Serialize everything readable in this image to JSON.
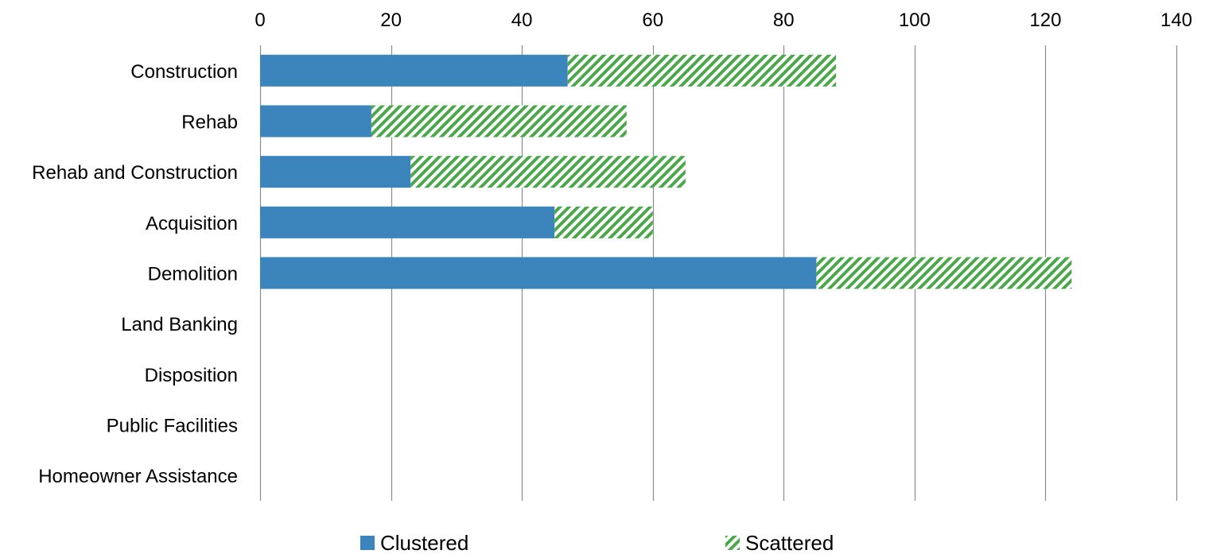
{
  "chart_data": {
    "type": "bar",
    "orientation": "horizontal",
    "stacked": true,
    "categories": [
      "Construction",
      "Rehab",
      "Rehab and Construction",
      "Acquisition",
      "Demolition",
      "Land Banking",
      "Disposition",
      "Public Facilities",
      "Homeowner Assistance"
    ],
    "series": [
      {
        "name": "Clustered",
        "values": [
          47,
          17,
          23,
          45,
          85,
          0,
          0,
          0,
          0
        ],
        "color": "#3c84bc",
        "pattern": "solid"
      },
      {
        "name": "Scattered",
        "values": [
          41,
          39,
          42,
          15,
          39,
          0,
          0,
          0,
          0
        ],
        "color": "#4aa84a",
        "pattern": "diagonal-stripes"
      }
    ],
    "xlim": [
      0,
      140
    ],
    "x_ticks": [
      0,
      20,
      40,
      60,
      80,
      100,
      120,
      140
    ],
    "x_axis_position": "top",
    "grid": "vertical",
    "legend_position": "bottom",
    "title": "",
    "xlabel": "",
    "ylabel": ""
  }
}
